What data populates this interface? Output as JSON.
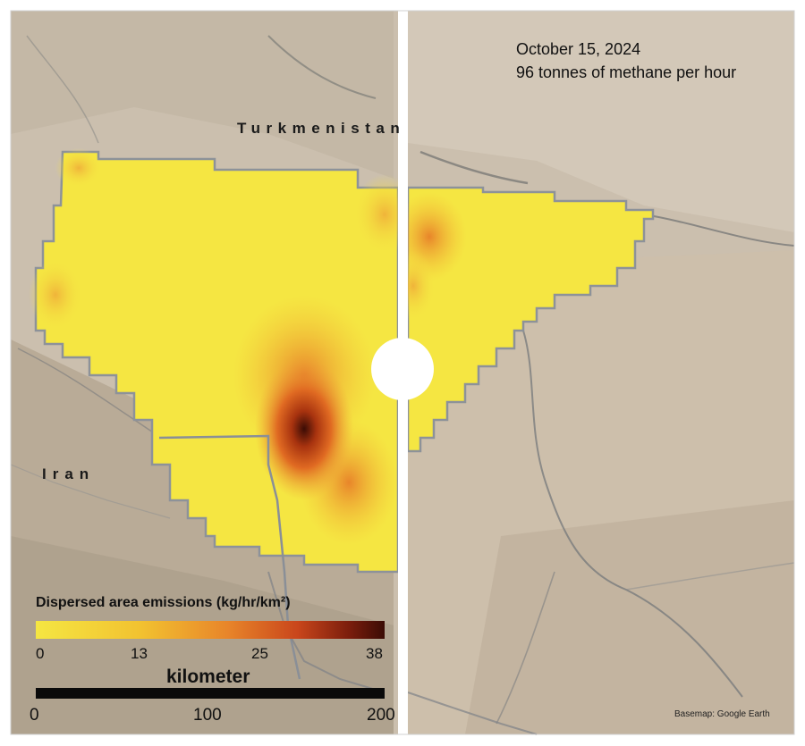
{
  "annotation": {
    "date": "October 15, 2024",
    "emission_rate": "96 tonnes of methane per hour"
  },
  "countries": {
    "north": "Turkmenistan",
    "south": "Iran"
  },
  "legend": {
    "title": "Dispersed area emissions (kg/hr/km²)",
    "ticks": [
      "0",
      "13",
      "25",
      "38"
    ],
    "colors": [
      "#f5e642",
      "#f2c230",
      "#e8852a",
      "#c9461b",
      "#7a1d0c",
      "#3b0c05"
    ]
  },
  "scale_bar": {
    "title": "kilometer",
    "ticks": [
      "0",
      "100",
      "200"
    ]
  },
  "credit": "Basemap: Google Earth",
  "colors": {
    "terrain": "#cbbfae",
    "terrain_dark": "#a89a87",
    "boundary": "#8d9299",
    "plume_low": "#f5e642",
    "plume_high": "#3b0c05"
  }
}
